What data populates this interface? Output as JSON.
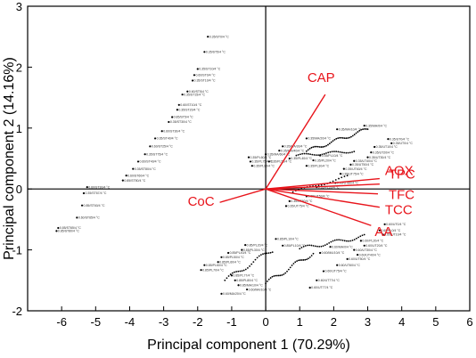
{
  "chart_data": {
    "type": "scatter",
    "title": "",
    "xlabel": "Principal component 1 (70.29%)",
    "ylabel": "Principal component 2 (14.16%)",
    "xlim": [
      -7,
      6
    ],
    "ylim": [
      -2,
      3
    ],
    "x_ticks": [
      "-6",
      "-5",
      "-4",
      "-3",
      "-2",
      "-1",
      "0",
      "1",
      "2",
      "3",
      "4",
      "5",
      "6"
    ],
    "y_ticks": [
      "-2",
      "-1",
      "0",
      "1",
      "2",
      "3"
    ],
    "zero_lines": true,
    "grid": false,
    "loading_color": "#e8141b",
    "point_color": "#000000",
    "loadings": [
      {
        "name": "CAP",
        "x": 1.75,
        "y": 1.55,
        "label": "CAP"
      },
      {
        "name": "AOX",
        "x": 3.35,
        "y": 0.17,
        "label": "AOX"
      },
      {
        "name": "TPC",
        "x": 3.35,
        "y": 0.08,
        "label": "TPC"
      },
      {
        "name": "TFC",
        "x": 3.3,
        "y": -0.08,
        "label": "TFC"
      },
      {
        "name": "TCC",
        "x": 3.35,
        "y": -0.3,
        "label": "TCC"
      },
      {
        "name": "AA",
        "x": 3.1,
        "y": -0.6,
        "label": "AA"
      },
      {
        "name": "CoC",
        "x": -1.35,
        "y": -0.22,
        "label": "CoC"
      }
    ],
    "labelled_points": [
      {
        "x": -1.7,
        "y": 2.5,
        "label": "0.35/ST0/4 °C"
      },
      {
        "x": -1.8,
        "y": 2.25,
        "label": "0.35/ST5/4 °C"
      },
      {
        "x": -2.0,
        "y": 1.97,
        "label": "0.35/ST10/4 °C"
      },
      {
        "x": -2.1,
        "y": 1.87,
        "label": "0.60/ST0/4 °C"
      },
      {
        "x": -2.15,
        "y": 1.78,
        "label": "0.35/ST10/4 °C"
      },
      {
        "x": -2.3,
        "y": 1.6,
        "label": "0.60/ST5/4 °C"
      },
      {
        "x": -2.45,
        "y": 1.55,
        "label": "0.35/ST15/4 °C"
      },
      {
        "x": -2.55,
        "y": 1.38,
        "label": "0.60/ST10/4 °C"
      },
      {
        "x": -2.6,
        "y": 1.3,
        "label": "0.35/ST20/4 °C"
      },
      {
        "x": -2.75,
        "y": 1.18,
        "label": "0.85/ST5/4 °C"
      },
      {
        "x": -2.85,
        "y": 1.1,
        "label": "0.35/ST30/4 °C"
      },
      {
        "x": -3.05,
        "y": 0.95,
        "label": "0.60/ST30/4 °C"
      },
      {
        "x": -3.25,
        "y": 0.83,
        "label": "0.35/ST40/4 °C"
      },
      {
        "x": -3.4,
        "y": 0.7,
        "label": "0.60/ST25/4 °C"
      },
      {
        "x": -3.55,
        "y": 0.57,
        "label": "0.35/ST75/4 °C"
      },
      {
        "x": -3.75,
        "y": 0.45,
        "label": "0.60/ST40/4 °C"
      },
      {
        "x": -3.9,
        "y": 0.33,
        "label": "0.35/ST80/4 °C"
      },
      {
        "x": -4.1,
        "y": 0.22,
        "label": "0.60/ST60/4 °C"
      },
      {
        "x": -4.2,
        "y": 0.14,
        "label": "0.85/ST50/4 °C"
      },
      {
        "x": -5.25,
        "y": 0.03,
        "label": "0.60/ST30/4 °C"
      },
      {
        "x": -5.35,
        "y": -0.07,
        "label": "0.35/ST67/4 °C"
      },
      {
        "x": -5.4,
        "y": -0.27,
        "label": "0.85/ST60/4 °C"
      },
      {
        "x": -5.55,
        "y": -0.47,
        "label": "0.60/ST65/4 °C"
      },
      {
        "x": -6.1,
        "y": -0.64,
        "label": "0.85/ST65/4 °C"
      },
      {
        "x": -6.15,
        "y": -0.69,
        "label": "0.85/ST80/4 °C"
      },
      {
        "x": 1.2,
        "y": 0.83,
        "label": "0.35/MA/20/4 °C"
      },
      {
        "x": 0.5,
        "y": 0.7,
        "label": "0.35/MA/30/4 °C"
      },
      {
        "x": 0.4,
        "y": 0.63,
        "label": "0.35/MM/40/4 °C"
      },
      {
        "x": 0.0,
        "y": 0.57,
        "label": "0.35/MA/60/4 °C"
      },
      {
        "x": 2.1,
        "y": 0.98,
        "label": "0.35/MA/10/4 °C"
      },
      {
        "x": 2.9,
        "y": 1.04,
        "label": "0.35/MA/0/4 °C"
      },
      {
        "x": 3.6,
        "y": 0.82,
        "label": "0.35/UT0/4 °C"
      },
      {
        "x": 3.7,
        "y": 0.75,
        "label": "0.35/UT0/4 °C"
      },
      {
        "x": 3.2,
        "y": 0.69,
        "label": "0.35/UT10/4 °C"
      },
      {
        "x": 3.1,
        "y": 0.6,
        "label": "0.35/UT20/4 °C"
      },
      {
        "x": 3.0,
        "y": 0.52,
        "label": "0.35/UT30/4 °C"
      },
      {
        "x": 2.6,
        "y": 0.46,
        "label": "0.35/UT40/4 °C"
      },
      {
        "x": 2.5,
        "y": 0.4,
        "label": "0.35/UT50/4 °C"
      },
      {
        "x": 2.3,
        "y": 0.33,
        "label": "0.35/UT60/4 °C"
      },
      {
        "x": 2.2,
        "y": 0.25,
        "label": "0.35/UT75/4 °C"
      },
      {
        "x": 2.05,
        "y": 0.1,
        "label": "0.35/UT80/4 °C"
      },
      {
        "x": 1.6,
        "y": 0.55,
        "label": "0.35/PL10/4 °C"
      },
      {
        "x": 1.4,
        "y": 0.47,
        "label": "0.35/PL20/4 °C"
      },
      {
        "x": 1.2,
        "y": 0.38,
        "label": "0.35/PL30/4 °C"
      },
      {
        "x": 0.7,
        "y": 0.5,
        "label": "0.35/PL40/4 °C"
      },
      {
        "x": 0.1,
        "y": 0.45,
        "label": "0.35/PL50/4 °C"
      },
      {
        "x": -0.5,
        "y": 0.52,
        "label": "0.35/PL60/4 °C"
      },
      {
        "x": -0.45,
        "y": 0.45,
        "label": "0.35/PL75/4 °C"
      },
      {
        "x": -0.4,
        "y": 0.38,
        "label": "0.35/PL80/4 °C"
      },
      {
        "x": 1.5,
        "y": 0.03,
        "label": "0.35/PL20/4 °C"
      },
      {
        "x": 1.2,
        "y": -0.12,
        "label": "0.35/UT50/4 °C"
      },
      {
        "x": 0.7,
        "y": -0.2,
        "label": "0.35/UT60/4 °C"
      },
      {
        "x": 0.6,
        "y": -0.28,
        "label": "0.35/UT75/4 °C"
      },
      {
        "x": 3.5,
        "y": -0.58,
        "label": "0.60/UT0/4 °C"
      },
      {
        "x": 3.35,
        "y": -0.68,
        "label": "0.60/PL0/4 °C"
      },
      {
        "x": 3.45,
        "y": -0.75,
        "label": "0.60/UT10/4 °C"
      },
      {
        "x": 2.8,
        "y": -0.85,
        "label": "0.60/PL20/4 °C"
      },
      {
        "x": 2.9,
        "y": -0.93,
        "label": "0.60/UT20/4 °C"
      },
      {
        "x": 2.6,
        "y": -1.0,
        "label": "0.60/UT30/4 °C"
      },
      {
        "x": 2.7,
        "y": -1.08,
        "label": "0.60/UT40/4 °C"
      },
      {
        "x": 2.4,
        "y": -1.15,
        "label": "0.60/UT50/4 °C"
      },
      {
        "x": 2.1,
        "y": -1.25,
        "label": "0.60/UT60/4 °C"
      },
      {
        "x": 1.7,
        "y": -1.35,
        "label": "0.60/UT75/4 °C"
      },
      {
        "x": 1.5,
        "y": -1.5,
        "label": "0.60/UT77/4 °C"
      },
      {
        "x": 1.3,
        "y": -1.62,
        "label": "0.60/UT77/4 °C"
      },
      {
        "x": 1.6,
        "y": -1.05,
        "label": "0.60/MA/10/4 °C"
      },
      {
        "x": 1.9,
        "y": -0.95,
        "label": "0.60/MA/0/4 °C"
      },
      {
        "x": 0.3,
        "y": -0.82,
        "label": "0.85/PL10/4 °C"
      },
      {
        "x": 0.5,
        "y": -0.93,
        "label": "0.85/PL10/4 °C"
      },
      {
        "x": -0.6,
        "y": -0.92,
        "label": "0.85/PL20/4 °C"
      },
      {
        "x": -0.7,
        "y": -1.0,
        "label": "0.85/PL30/4 °C"
      },
      {
        "x": -1.1,
        "y": -1.05,
        "label": "0.85/PL40/4 °C"
      },
      {
        "x": -1.3,
        "y": -1.12,
        "label": "0.85/PL50/4 °C"
      },
      {
        "x": -1.4,
        "y": -1.2,
        "label": "0.85/PL60/4 °C"
      },
      {
        "x": -1.8,
        "y": -1.25,
        "label": "0.85/PL60/4 °C"
      },
      {
        "x": -1.9,
        "y": -1.33,
        "label": "0.85/PL70/4 °C"
      },
      {
        "x": -1.0,
        "y": -1.42,
        "label": "0.85/PL77/4 °C"
      },
      {
        "x": -0.9,
        "y": -1.5,
        "label": "0.85/PL80/4 °C"
      },
      {
        "x": -0.8,
        "y": -1.58,
        "label": "0.85/MA/10/4 °C"
      },
      {
        "x": -0.55,
        "y": -1.65,
        "label": "0.60/MA/10/4 °C"
      },
      {
        "x": -1.3,
        "y": -1.72,
        "label": "0.60/MA/20/4 °C"
      }
    ]
  }
}
